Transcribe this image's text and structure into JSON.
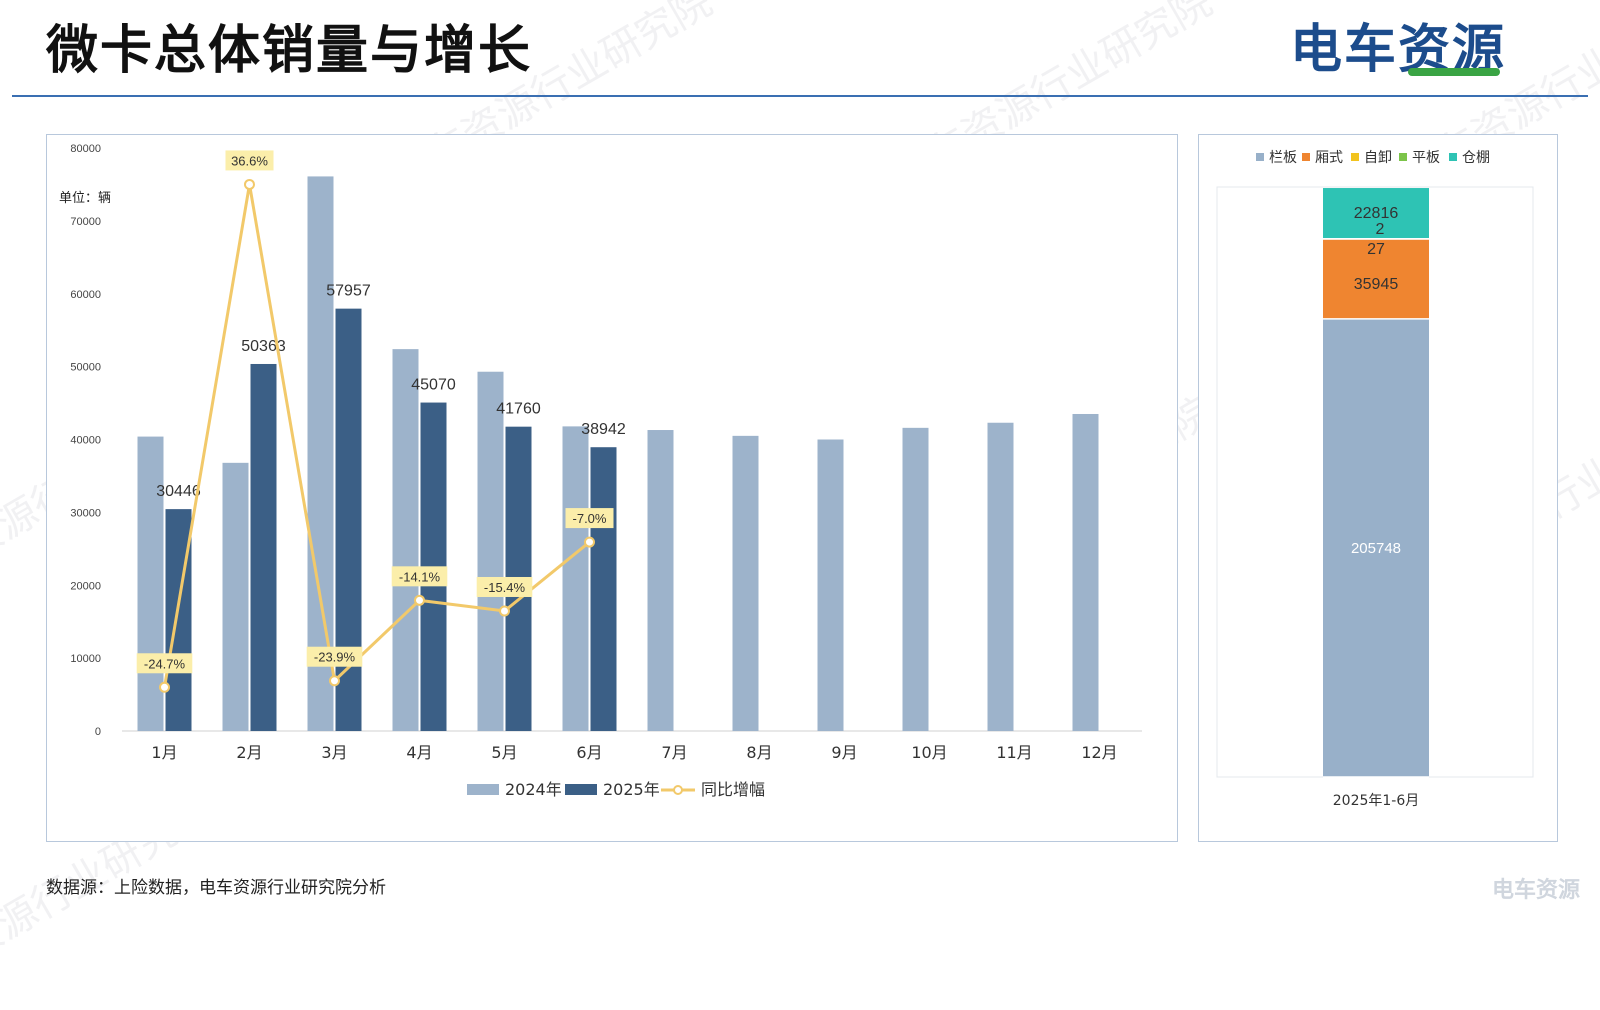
{
  "page": {
    "title": "微卡总体销量与增长",
    "brand": "电车资源",
    "source": "数据源：上险数据，电车资源行业研究院分析",
    "watermark": "电车资源行业研究院",
    "corner_mark": "电车资源"
  },
  "colors": {
    "bar_2024": "#9db3cb",
    "bar_2025": "#3b5f86",
    "growth_line": "#f2c96a",
    "growth_label_bg": "#fbeeaa",
    "lanban": "#98b0c9",
    "xiangshi": "#ef8530",
    "zixie": "#f2c31e",
    "pingban": "#7cc44a",
    "cangpeng": "#2ec3b4",
    "header_rule": "#3a6fb2"
  },
  "chart_data": [
    {
      "type": "bar",
      "unit_label": "单位：辆",
      "categories": [
        "1月",
        "2月",
        "3月",
        "4月",
        "5月",
        "6月",
        "7月",
        "8月",
        "9月",
        "10月",
        "11月",
        "12月"
      ],
      "ylim": [
        0,
        80000
      ],
      "yticks": [
        0,
        10000,
        20000,
        30000,
        40000,
        50000,
        60000,
        70000,
        80000
      ],
      "series": [
        {
          "name": "2024年",
          "type": "bar",
          "values": [
            40400,
            36800,
            76100,
            52400,
            49300,
            41800,
            41300,
            40500,
            40000,
            41600,
            42300,
            43500
          ]
        },
        {
          "name": "2025年",
          "type": "bar",
          "values": [
            30446,
            50363,
            57957,
            45070,
            41760,
            38942,
            null,
            null,
            null,
            null,
            null,
            null
          ],
          "labels": [
            "30446",
            "50363",
            "57957",
            "45070",
            "41760",
            "38942",
            "",
            "",
            "",
            "",
            "",
            ""
          ]
        },
        {
          "name": "同比增幅",
          "type": "line",
          "values": [
            -24.7,
            36.6,
            -23.9,
            -14.1,
            -15.4,
            -7.0,
            null,
            null,
            null,
            null,
            null,
            null
          ],
          "labels": [
            "-24.7%",
            "36.6%",
            "-23.9%",
            "-14.1%",
            "-15.4%",
            "-7.0%",
            "",
            "",
            "",
            "",
            "",
            ""
          ]
        }
      ],
      "legend": [
        "2024年",
        "2025年",
        "同比增幅"
      ],
      "legend_position": "bottom"
    },
    {
      "type": "stacked-bar",
      "categories": [
        "2025年1-6月"
      ],
      "legend": [
        "栏板",
        "厢式",
        "自卸",
        "平板",
        "仓棚"
      ],
      "legend_position": "top",
      "ylim": [
        0,
        265000
      ],
      "series": [
        {
          "name": "栏板",
          "values": [
            205748
          ],
          "label": "205748"
        },
        {
          "name": "厢式",
          "values": [
            35945
          ],
          "label": "35945"
        },
        {
          "name": "自卸",
          "values": [
            27
          ],
          "label": "27"
        },
        {
          "name": "平板",
          "values": [
            2
          ],
          "label": "2"
        },
        {
          "name": "仓棚",
          "values": [
            22816
          ],
          "label": "22816"
        }
      ]
    }
  ]
}
